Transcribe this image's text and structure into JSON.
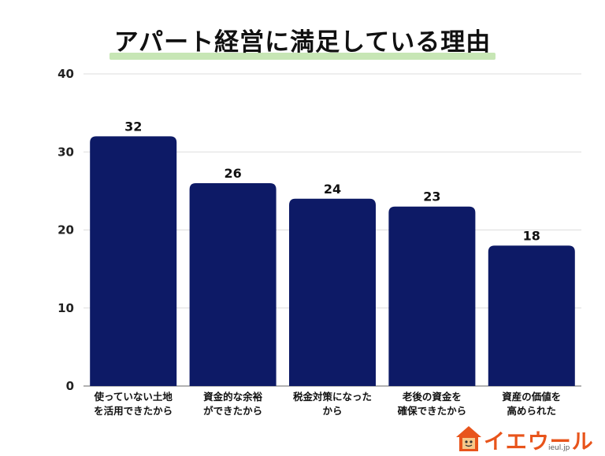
{
  "chart_data": {
    "type": "bar",
    "title": "アパート経営に満足している理由",
    "categories": [
      [
        "使っていない土地",
        "を活用できたから"
      ],
      [
        "資金的な余裕",
        "ができたから"
      ],
      [
        "税金対策になった",
        "から"
      ],
      [
        "老後の資金を",
        "確保できたから"
      ],
      [
        "資産の価値を",
        "高められた"
      ]
    ],
    "values": [
      32,
      26,
      24,
      23,
      18
    ],
    "ylim": [
      0,
      40
    ],
    "yticks": [
      0,
      10,
      20,
      30,
      40
    ],
    "grid": true,
    "bar_color": "#0d1a66",
    "grid_color": "#dddddd",
    "title_highlight_color": "#c7e6b5"
  },
  "logo": {
    "text": "イエウール",
    "domain": "ieul.jp",
    "icon": "house-mascot-icon",
    "color": "#e8541b"
  }
}
